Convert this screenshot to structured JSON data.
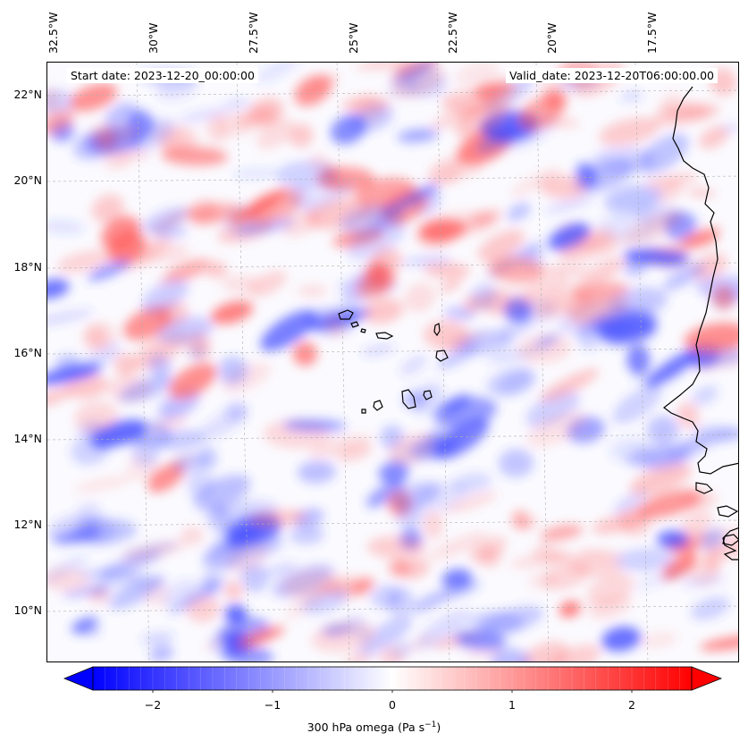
{
  "header": {
    "start_date": "Start date: 2023-12-20_00:00:00",
    "valid_date": "Valid_date: 2023-12-20T06:00:00.00"
  },
  "longitude_labels": [
    "32.5°W",
    "30°W",
    "27.5°W",
    "25°W",
    "22.5°W",
    "20°W",
    "17.5°W"
  ],
  "latitude_labels": [
    "22°N",
    "20°N",
    "18°N",
    "16°N",
    "14°N",
    "12°N",
    "10°N"
  ],
  "colorbar": {
    "label_prefix": "300 hPa omega (Pa s",
    "label_exp": "−1",
    "label_suffix": ")",
    "ticks": [
      "−2",
      "−1",
      "0",
      "1",
      "2"
    ],
    "range": [
      -2.75,
      2.75
    ],
    "colormap": "bwr",
    "low_color": "#0000ff",
    "mid_color": "#ffffff",
    "high_color": "#ff0000"
  },
  "map": {
    "variable": "300 hPa omega",
    "lon_range": [
      -33.0,
      -16.0
    ],
    "lat_range": [
      9.0,
      22.8
    ],
    "coastline_color": "#000000",
    "gridline_color": "#b0b0b0"
  }
}
